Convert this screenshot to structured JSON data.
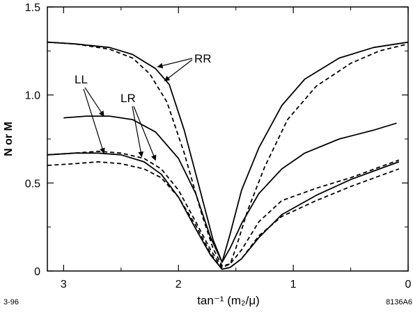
{
  "chart_data": {
    "type": "line",
    "xlabel": "tan⁻¹ (m₂/μ)",
    "ylabel": "N or M",
    "xlim": [
      0,
      3.1416
    ],
    "x_reversed": true,
    "ylim": [
      0,
      1.5
    ],
    "x_ticks": [
      3,
      2,
      1,
      0
    ],
    "x_tick_labels": [
      "3",
      "2",
      "1",
      "0"
    ],
    "y_ticks": [
      0,
      0.5,
      1.0,
      1.5
    ],
    "y_tick_labels": [
      "0",
      "0.5",
      "1.0",
      "1.5"
    ],
    "grid": false,
    "corner_notes": {
      "left": "3-96",
      "right": "8136A6"
    },
    "annotations": [
      "RR",
      "LL",
      "LR"
    ],
    "series": [
      {
        "style": "solid",
        "points": [
          [
            3.14,
            1.3
          ],
          [
            2.9,
            1.29
          ],
          [
            2.6,
            1.27
          ],
          [
            2.4,
            1.23
          ],
          [
            2.2,
            1.15
          ],
          [
            2.08,
            1.06
          ],
          [
            1.95,
            0.8
          ],
          [
            1.8,
            0.43
          ],
          [
            1.7,
            0.18
          ],
          [
            1.62,
            0.05
          ],
          [
            1.55,
            0.21
          ],
          [
            1.45,
            0.46
          ],
          [
            1.3,
            0.7
          ],
          [
            1.1,
            0.94
          ],
          [
            0.9,
            1.09
          ],
          [
            0.6,
            1.21
          ],
          [
            0.3,
            1.27
          ],
          [
            0.0,
            1.3
          ]
        ]
      },
      {
        "style": "dashed",
        "points": [
          [
            3.14,
            1.3
          ],
          [
            2.9,
            1.29
          ],
          [
            2.6,
            1.26
          ],
          [
            2.4,
            1.21
          ],
          [
            2.25,
            1.12
          ],
          [
            2.1,
            0.96
          ],
          [
            1.95,
            0.67
          ],
          [
            1.8,
            0.33
          ],
          [
            1.7,
            0.13
          ],
          [
            1.62,
            0.03
          ],
          [
            1.55,
            0.04
          ],
          [
            1.5,
            0.13
          ],
          [
            1.4,
            0.34
          ],
          [
            1.25,
            0.59
          ],
          [
            1.05,
            0.86
          ],
          [
            0.8,
            1.05
          ],
          [
            0.5,
            1.18
          ],
          [
            0.25,
            1.25
          ],
          [
            0.0,
            1.29
          ]
        ]
      },
      {
        "style": "solid",
        "points": [
          [
            3.0,
            0.87
          ],
          [
            2.8,
            0.88
          ],
          [
            2.6,
            0.88
          ],
          [
            2.4,
            0.86
          ],
          [
            2.2,
            0.79
          ],
          [
            2.0,
            0.64
          ],
          [
            1.85,
            0.44
          ],
          [
            1.72,
            0.19
          ],
          [
            1.62,
            0.05
          ],
          [
            1.55,
            0.13
          ],
          [
            1.45,
            0.27
          ],
          [
            1.3,
            0.44
          ],
          [
            1.1,
            0.58
          ],
          [
            0.9,
            0.67
          ],
          [
            0.6,
            0.75
          ],
          [
            0.3,
            0.8
          ],
          [
            0.1,
            0.84
          ]
        ]
      },
      {
        "style": "solid",
        "points": [
          [
            3.14,
            0.66
          ],
          [
            2.9,
            0.67
          ],
          [
            2.7,
            0.67
          ],
          [
            2.5,
            0.66
          ],
          [
            2.3,
            0.62
          ],
          [
            2.15,
            0.55
          ],
          [
            2.0,
            0.42
          ],
          [
            1.85,
            0.24
          ],
          [
            1.72,
            0.09
          ],
          [
            1.62,
            0.01
          ],
          [
            1.55,
            0.02
          ],
          [
            1.45,
            0.07
          ],
          [
            1.3,
            0.19
          ],
          [
            1.1,
            0.32
          ],
          [
            0.8,
            0.43
          ],
          [
            0.5,
            0.52
          ],
          [
            0.25,
            0.58
          ],
          [
            0.08,
            0.62
          ]
        ]
      },
      {
        "style": "dashed",
        "points": [
          [
            3.14,
            0.66
          ],
          [
            2.9,
            0.67
          ],
          [
            2.7,
            0.68
          ],
          [
            2.5,
            0.67
          ],
          [
            2.3,
            0.64
          ],
          [
            2.15,
            0.58
          ],
          [
            2.0,
            0.46
          ],
          [
            1.85,
            0.28
          ],
          [
            1.72,
            0.12
          ],
          [
            1.62,
            0.02
          ],
          [
            1.55,
            0.04
          ],
          [
            1.45,
            0.12
          ],
          [
            1.3,
            0.28
          ],
          [
            1.1,
            0.4
          ],
          [
            0.8,
            0.47
          ],
          [
            0.5,
            0.53
          ],
          [
            0.25,
            0.59
          ],
          [
            0.08,
            0.63
          ]
        ]
      },
      {
        "style": "dashed",
        "points": [
          [
            3.14,
            0.6
          ],
          [
            2.9,
            0.61
          ],
          [
            2.7,
            0.62
          ],
          [
            2.5,
            0.61
          ],
          [
            2.3,
            0.58
          ],
          [
            2.15,
            0.53
          ],
          [
            2.0,
            0.42
          ],
          [
            1.85,
            0.26
          ],
          [
            1.72,
            0.1
          ],
          [
            1.62,
            0.01
          ],
          [
            1.55,
            0.02
          ],
          [
            1.45,
            0.07
          ],
          [
            1.3,
            0.2
          ],
          [
            1.1,
            0.31
          ],
          [
            0.8,
            0.4
          ],
          [
            0.5,
            0.48
          ],
          [
            0.25,
            0.54
          ],
          [
            0.08,
            0.58
          ]
        ]
      }
    ]
  }
}
